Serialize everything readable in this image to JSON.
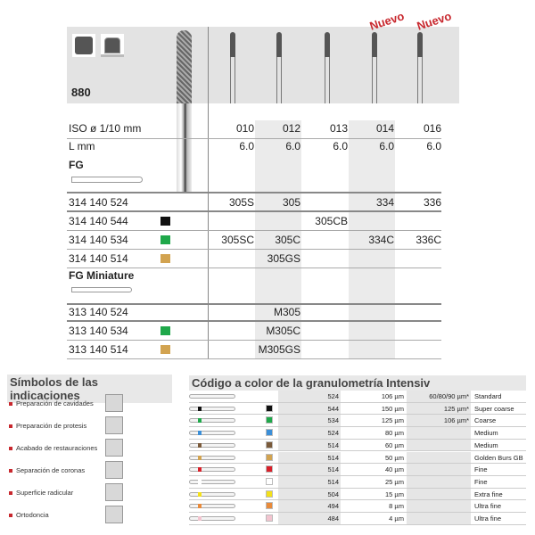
{
  "product": {
    "code": "880",
    "new_label": "Nuevo"
  },
  "spec": {
    "iso_label": "ISO ø 1/10 mm",
    "len_label": "L mm",
    "sizes": [
      "010",
      "012",
      "013",
      "014",
      "016"
    ],
    "lengths": [
      "6.0",
      "6.0",
      "6.0",
      "6.0",
      "6.0"
    ],
    "new_flags": [
      false,
      false,
      false,
      true,
      true
    ]
  },
  "fg": {
    "title": "FG",
    "rows": [
      {
        "ref": "314 140 524",
        "color": "",
        "cells": [
          "305S",
          "305",
          "",
          "334",
          "336"
        ]
      },
      {
        "ref": "314 140 544",
        "color": "#111111",
        "cells": [
          "",
          "",
          "305CB",
          "",
          ""
        ]
      },
      {
        "ref": "314 140 534",
        "color": "#1fa84a",
        "cells": [
          "305SC",
          "305C",
          "",
          "334C",
          "336C"
        ]
      },
      {
        "ref": "314 140 514",
        "color": "#d2a350",
        "cells": [
          "",
          "305GS",
          "",
          "",
          ""
        ]
      }
    ]
  },
  "fgm": {
    "title": "FG Miniature",
    "rows": [
      {
        "ref": "313 140 524",
        "color": "",
        "cells": [
          "",
          "M305",
          "",
          "",
          ""
        ]
      },
      {
        "ref": "313 140 534",
        "color": "#1fa84a",
        "cells": [
          "",
          "M305C",
          "",
          "",
          ""
        ]
      },
      {
        "ref": "313 140 514",
        "color": "#d2a350",
        "cells": [
          "",
          "M305GS",
          "",
          "",
          ""
        ]
      }
    ]
  },
  "indications": {
    "title": "Símbolos de las indicaciones",
    "items": [
      "Preparación de cavidades",
      "Preparación de protesis",
      "Acabado de restauraciones",
      "Separación de coronas",
      "Superficie radicular",
      "Ortodoncia"
    ]
  },
  "grit": {
    "title": "Código a color de la granulometría Intensiv",
    "rows": [
      {
        "color": "",
        "code": "524",
        "size": "106 µm",
        "std": "60/80/90 µm*",
        "name": "Standard"
      },
      {
        "color": "#111111",
        "code": "544",
        "size": "150 µm",
        "std": "125 µm*",
        "name": "Super coarse"
      },
      {
        "color": "#1fa84a",
        "code": "534",
        "size": "125 µm",
        "std": "106 µm*",
        "name": "Coarse"
      },
      {
        "color": "#3b8fd8",
        "code": "524",
        "size": "80 µm",
        "std": "",
        "name": "Medium"
      },
      {
        "color": "#7a5a3a",
        "code": "514",
        "size": "60 µm",
        "std": "",
        "name": "Medium"
      },
      {
        "color": "#d2a350",
        "code": "514",
        "size": "50 µm",
        "std": "",
        "name": "Golden Burs GB"
      },
      {
        "color": "#d8202a",
        "code": "514",
        "size": "40 µm",
        "std": "",
        "name": "Fine"
      },
      {
        "color": "#ffffff",
        "code": "514",
        "size": "25 µm",
        "std": "",
        "name": "Fine"
      },
      {
        "color": "#f3e01a",
        "code": "504",
        "size": "15 µm",
        "std": "",
        "name": "Extra fine"
      },
      {
        "color": "#e88a3a",
        "code": "494",
        "size": "8 µm",
        "std": "",
        "name": "Ultra fine"
      },
      {
        "color": "#f2c4cf",
        "code": "484",
        "size": "4 µm",
        "std": "",
        "name": "Ultra fine"
      }
    ]
  }
}
